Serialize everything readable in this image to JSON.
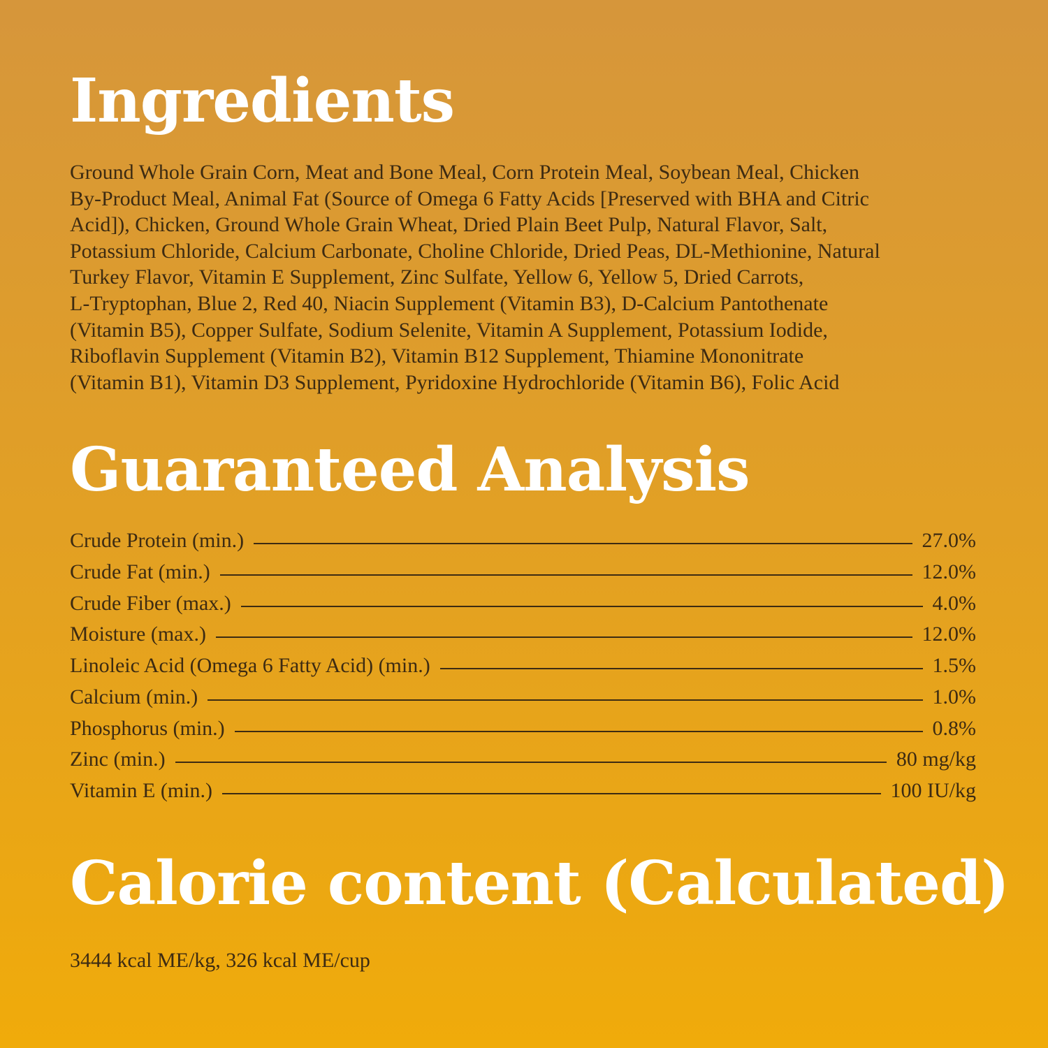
{
  "ingredients": {
    "title": "Ingredients",
    "lines": [
      "Ground Whole Grain Corn, Meat and Bone Meal, Corn Protein Meal, Soybean Meal, Chicken",
      "By-Product Meal, Animal Fat (Source of Omega 6 Fatty Acids [Preserved with BHA and Citric",
      "Acid]), Chicken, Ground Whole Grain Wheat, Dried Plain Beet Pulp, Natural Flavor, Salt,",
      "Potassium Chloride, Calcium Carbonate, Choline Chloride, Dried Peas, DL-Methionine, Natural",
      "Turkey Flavor, Vitamin E Supplement, Zinc Sulfate, Yellow 6, Yellow 5, Dried Carrots,",
      "L-Tryptophan, Blue 2, Red 40, Niacin Supplement (Vitamin B3), D-Calcium Pantothenate",
      "(Vitamin B5), Copper Sulfate, Sodium Selenite, Vitamin A Supplement, Potassium Iodide,",
      "Riboflavin Supplement (Vitamin B2), Vitamin B12 Supplement, Thiamine Mononitrate",
      "(Vitamin B1), Vitamin D3 Supplement, Pyridoxine Hydrochloride (Vitamin B6), Folic Acid"
    ]
  },
  "analysis": {
    "title": "Guaranteed Analysis",
    "rows": [
      [
        "Crude Protein (min.)",
        "27.0%"
      ],
      [
        "Crude Fat (min.)",
        "12.0%"
      ],
      [
        "Crude Fiber (max.)",
        "4.0%"
      ],
      [
        "Moisture (max.)",
        "12.0%"
      ],
      [
        "Linoleic Acid (Omega 6 Fatty Acid) (min.)",
        "1.5%"
      ],
      [
        "Calcium (min.)",
        "1.0%"
      ],
      [
        "Phosphorus (min.)",
        "0.8%"
      ],
      [
        "Zinc (min.)",
        "80 mg/kg"
      ],
      [
        "Vitamin E (min.)",
        "100 IU/kg"
      ]
    ]
  },
  "calories": {
    "title": "Calorie content (Calculated)",
    "text": "3444 kcal ME/kg, 326 kcal ME/cup"
  }
}
